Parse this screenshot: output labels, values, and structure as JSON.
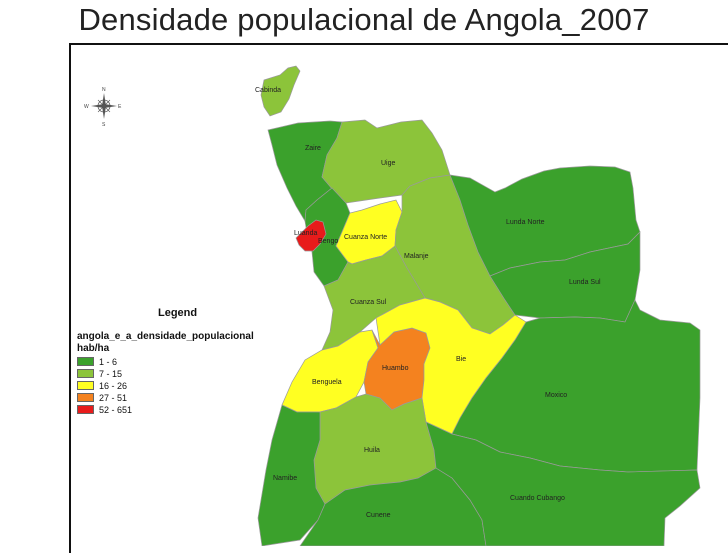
{
  "title": "Densidade populacional de Angola_2007",
  "compass": {
    "n": "N",
    "s": "S",
    "e": "E",
    "w": "W"
  },
  "legend": {
    "title": "Legend",
    "layer": "angola_e_a_densidade_populacional",
    "unit": "hab/ha",
    "classes": [
      {
        "range": "1 - 6",
        "color": "#3ba12c"
      },
      {
        "range": "7 - 15",
        "color": "#8cc43a"
      },
      {
        "range": "16 - 26",
        "color": "#ffff22"
      },
      {
        "range": "27 - 51",
        "color": "#f4821f"
      },
      {
        "range": "52 - 651",
        "color": "#e81b1b"
      }
    ]
  },
  "provinces": [
    {
      "name": "Cabinda",
      "class": 1
    },
    {
      "name": "Zaire",
      "class": 0
    },
    {
      "name": "Uige",
      "class": 1
    },
    {
      "name": "Luanda",
      "class": 4
    },
    {
      "name": "Bengo",
      "class": 0
    },
    {
      "name": "Cuanza Norte",
      "class": 2
    },
    {
      "name": "Malanje",
      "class": 1
    },
    {
      "name": "Lunda Norte",
      "class": 0
    },
    {
      "name": "Lunda Sul",
      "class": 0
    },
    {
      "name": "Cuanza Sul",
      "class": 1
    },
    {
      "name": "Benguela",
      "class": 2
    },
    {
      "name": "Huambo",
      "class": 3
    },
    {
      "name": "Bie",
      "class": 2
    },
    {
      "name": "Moxico",
      "class": 0
    },
    {
      "name": "Huila",
      "class": 1
    },
    {
      "name": "Namibe",
      "class": 0
    },
    {
      "name": "Cunene",
      "class": 0
    },
    {
      "name": "Cuando Cubango",
      "class": 0
    }
  ]
}
